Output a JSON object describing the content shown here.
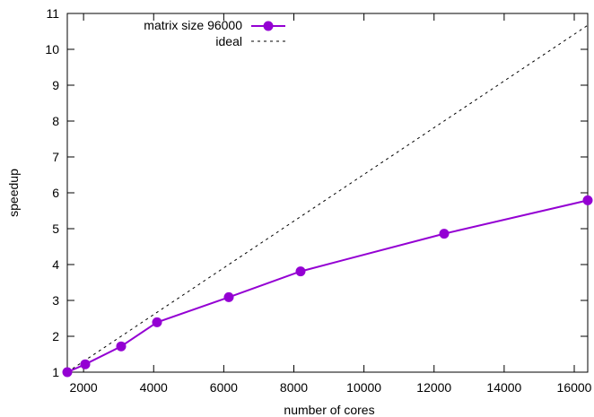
{
  "chart_data": {
    "type": "line",
    "title": "",
    "xlabel": "number of cores",
    "ylabel": "speedup",
    "xlim": [
      1536,
      16384
    ],
    "ylim": [
      1,
      11
    ],
    "xticks": [
      2000,
      4000,
      6000,
      8000,
      10000,
      12000,
      14000,
      16000
    ],
    "yticks": [
      1,
      2,
      3,
      4,
      5,
      6,
      7,
      8,
      9,
      10,
      11
    ],
    "grid": false,
    "legend_position": "top-left",
    "series": [
      {
        "name": "matrix size 96000",
        "color": "#9400d3",
        "marker": "circle",
        "x": [
          1536,
          2048,
          3072,
          4096,
          6144,
          8192,
          12288,
          16384
        ],
        "y": [
          1.0,
          1.22,
          1.72,
          2.39,
          3.09,
          3.81,
          4.86,
          5.79
        ]
      },
      {
        "name": "ideal",
        "color": "#000000",
        "style": "dashed",
        "x": [
          1536,
          16384
        ],
        "y": [
          1.0,
          10.67
        ]
      }
    ]
  }
}
